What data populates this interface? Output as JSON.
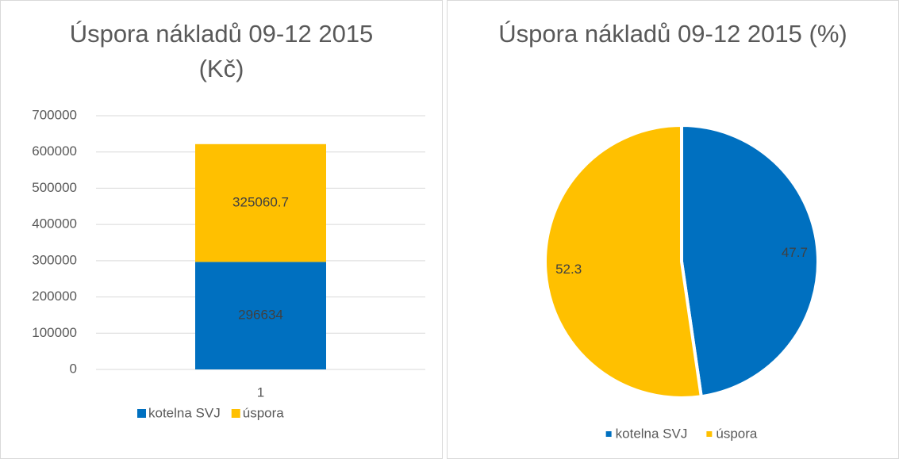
{
  "chart_data": [
    {
      "type": "bar",
      "stacked": true,
      "title": "Úspora nákladů 09-12 2015 (Kč)",
      "categories": [
        "1"
      ],
      "series": [
        {
          "name": "kotelna SVJ",
          "color": "#0070c0",
          "values": [
            296634
          ]
        },
        {
          "name": "úspora",
          "color": "#ffc000",
          "values": [
            325060.7
          ]
        }
      ],
      "ylim": [
        0,
        700000
      ],
      "yticks": [
        0,
        100000,
        200000,
        300000,
        400000,
        500000,
        600000,
        700000
      ],
      "grid": true,
      "legend": "bottom"
    },
    {
      "type": "pie",
      "title": "Úspora nákladů 09-12 2015 (%)",
      "categories": [
        "kotelna SVJ",
        "úspora"
      ],
      "values": [
        47.7,
        52.3
      ],
      "colors": [
        "#0070c0",
        "#ffc000"
      ],
      "legend": "bottom"
    }
  ]
}
